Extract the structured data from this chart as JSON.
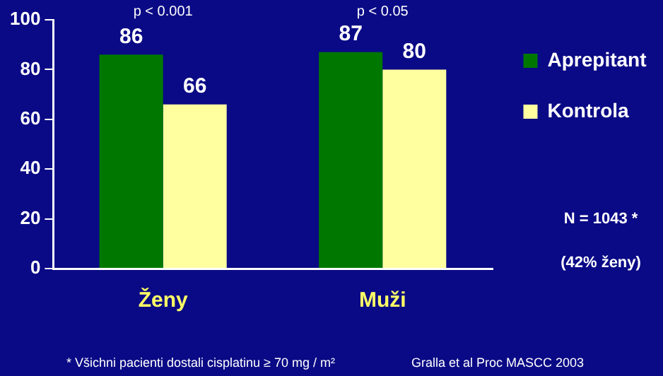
{
  "chart_data": {
    "type": "bar",
    "categories": [
      "Ženy",
      "Muži"
    ],
    "series": [
      {
        "name": "Aprepitant",
        "color": "#007800",
        "values": [
          86,
          87
        ]
      },
      {
        "name": "Kontrola",
        "color": "#ffffa0",
        "values": [
          66,
          80
        ]
      }
    ],
    "ylim": [
      0,
      100
    ],
    "yticks": [
      0,
      20,
      40,
      60,
      80,
      100
    ],
    "grid": false,
    "legend": "top right",
    "data_labels": true,
    "annotations": [
      "p < 0.001",
      "p < 0.05",
      "N = 1043 *",
      "(42% ženy)",
      "* Všichni pacienti dostali cisplatinu ≥ 70 mg / m²",
      "Gralla et al Proc MASCC 2003"
    ]
  }
}
